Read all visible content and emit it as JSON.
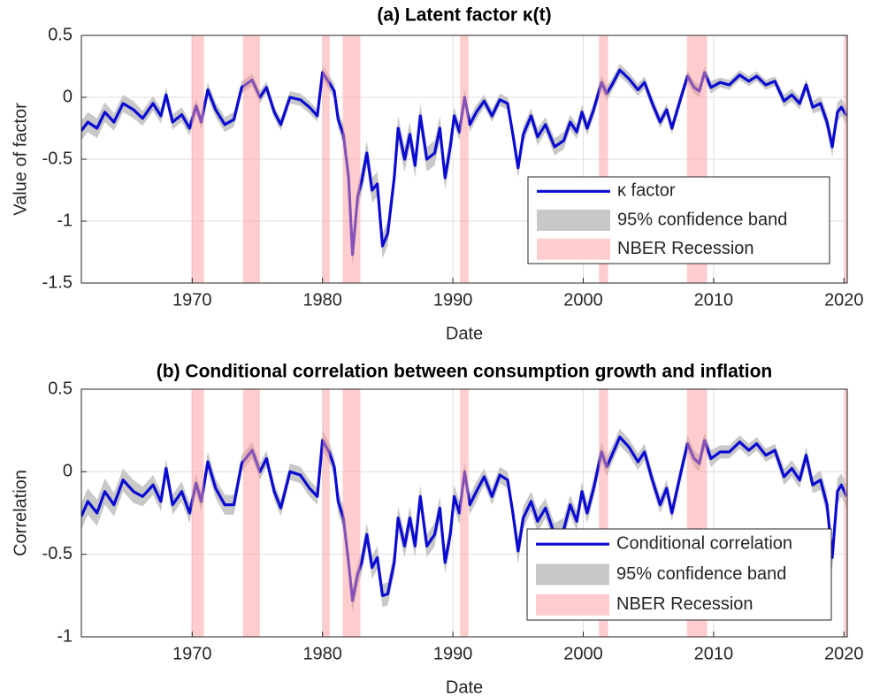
{
  "chart_data": [
    {
      "type": "line",
      "title": "(a) Latent factor κ(t)",
      "xlabel": "Date",
      "ylabel": "Value of factor",
      "xlim": [
        1961.5,
        2020.25
      ],
      "xticks": [
        1970,
        1980,
        1990,
        2000,
        2010,
        2020
      ],
      "ylim": [
        -1.5,
        0.5
      ],
      "yticks": [
        -1.5,
        -1,
        -0.5,
        0,
        0.5
      ],
      "grid": true,
      "legend": "right",
      "x": [
        1961.5,
        1962,
        1962.7,
        1963.3,
        1964,
        1964.7,
        1965.5,
        1966.2,
        1967,
        1967.6,
        1968,
        1968.5,
        1969.2,
        1969.8,
        1970.3,
        1970.7,
        1971.2,
        1971.8,
        1972.5,
        1973.2,
        1973.8,
        1974.6,
        1975.2,
        1975.7,
        1976.3,
        1976.8,
        1977.5,
        1978.3,
        1979,
        1979.6,
        1980,
        1980.5,
        1980.9,
        1981.2,
        1981.6,
        1982,
        1982.3,
        1982.7,
        1983,
        1983.4,
        1983.8,
        1984.2,
        1984.6,
        1985,
        1985.5,
        1985.8,
        1986.3,
        1986.7,
        1987.1,
        1987.5,
        1988,
        1988.6,
        1989,
        1989.4,
        1989.8,
        1990.1,
        1990.5,
        1990.9,
        1991.3,
        1991.8,
        1992.4,
        1993,
        1993.6,
        1994.2,
        1994.6,
        1995,
        1995.4,
        1996,
        1996.5,
        1997.1,
        1997.8,
        1998.5,
        1999,
        1999.5,
        1999.9,
        2000.3,
        2000.8,
        2001.4,
        2001.8,
        2002.2,
        2002.8,
        2003.5,
        2004.2,
        2004.7,
        2005.3,
        2005.9,
        2006.4,
        2006.8,
        2007.5,
        2008,
        2008.5,
        2008.9,
        2009.3,
        2009.8,
        2010.5,
        2011.2,
        2012,
        2012.7,
        2013.3,
        2014,
        2014.7,
        2015.4,
        2016,
        2016.6,
        2017.1,
        2017.6,
        2018.2,
        2018.7,
        2019.1,
        2019.5,
        2019.8,
        2020.2
      ],
      "series": [
        {
          "name": "κ factor",
          "color": "#0a0ad2",
          "values": [
            -0.27,
            -0.2,
            -0.25,
            -0.12,
            -0.2,
            -0.05,
            -0.1,
            -0.17,
            -0.05,
            -0.15,
            0.02,
            -0.2,
            -0.14,
            -0.25,
            -0.07,
            -0.2,
            0.06,
            -0.1,
            -0.22,
            -0.18,
            0.08,
            0.14,
            0,
            0.08,
            -0.12,
            -0.22,
            0,
            -0.02,
            -0.08,
            -0.15,
            0.2,
            0.12,
            0.05,
            -0.18,
            -0.3,
            -0.65,
            -1.27,
            -0.8,
            -0.68,
            -0.45,
            -0.75,
            -0.7,
            -1.2,
            -1.1,
            -0.65,
            -0.25,
            -0.5,
            -0.3,
            -0.55,
            -0.15,
            -0.5,
            -0.45,
            -0.25,
            -0.65,
            -0.4,
            -0.15,
            -0.28,
            0,
            -0.22,
            -0.12,
            -0.03,
            -0.15,
            -0.02,
            -0.05,
            -0.3,
            -0.57,
            -0.3,
            -0.15,
            -0.32,
            -0.22,
            -0.4,
            -0.35,
            -0.2,
            -0.28,
            -0.12,
            -0.25,
            -0.1,
            0.12,
            0.03,
            0.1,
            0.22,
            0.15,
            0.06,
            0.12,
            -0.05,
            -0.2,
            -0.1,
            -0.25,
            0,
            0.17,
            0.08,
            0.05,
            0.2,
            0.08,
            0.12,
            0.1,
            0.18,
            0.13,
            0.17,
            0.1,
            0.13,
            -0.03,
            0.02,
            -0.05,
            0.1,
            -0.08,
            -0.05,
            -0.2,
            -0.4,
            -0.12,
            -0.08,
            -0.15
          ]
        }
      ],
      "band": {
        "name": "95% confidence band",
        "color": "#c8c8c8",
        "lower": [
          -0.35,
          -0.28,
          -0.33,
          -0.2,
          -0.27,
          -0.12,
          -0.17,
          -0.23,
          -0.11,
          -0.21,
          -0.04,
          -0.26,
          -0.2,
          -0.31,
          -0.13,
          -0.26,
          0,
          -0.16,
          -0.28,
          -0.24,
          0.03,
          0.09,
          -0.05,
          0.03,
          -0.17,
          -0.27,
          -0.05,
          -0.07,
          -0.13,
          -0.2,
          0.14,
          0.06,
          -0.01,
          -0.25,
          -0.38,
          -0.75,
          -1.37,
          -0.9,
          -0.78,
          -0.55,
          -0.85,
          -0.8,
          -1.3,
          -1.2,
          -0.75,
          -0.35,
          -0.6,
          -0.4,
          -0.65,
          -0.25,
          -0.6,
          -0.55,
          -0.35,
          -0.75,
          -0.5,
          -0.22,
          -0.35,
          -0.06,
          -0.28,
          -0.18,
          -0.08,
          -0.2,
          -0.07,
          -0.1,
          -0.36,
          -0.65,
          -0.37,
          -0.21,
          -0.39,
          -0.28,
          -0.47,
          -0.42,
          -0.26,
          -0.34,
          -0.18,
          -0.31,
          -0.16,
          0.06,
          -0.03,
          0.05,
          0.17,
          0.1,
          0.01,
          0.07,
          -0.1,
          -0.25,
          -0.15,
          -0.3,
          -0.05,
          0.12,
          0.03,
          0,
          0.15,
          0.03,
          0.08,
          0.06,
          0.14,
          0.09,
          0.13,
          0.06,
          0.09,
          -0.08,
          -0.03,
          -0.1,
          0.05,
          -0.13,
          -0.11,
          -0.27,
          -0.48,
          -0.2,
          -0.15,
          -0.22
        ],
        "upper": [
          -0.19,
          -0.12,
          -0.17,
          -0.04,
          -0.13,
          0.02,
          -0.03,
          -0.11,
          0.01,
          -0.09,
          0.08,
          -0.14,
          -0.08,
          -0.19,
          -0.01,
          -0.14,
          0.12,
          -0.04,
          -0.16,
          -0.12,
          0.13,
          0.19,
          0.05,
          0.13,
          -0.07,
          -0.17,
          0.05,
          0.03,
          -0.03,
          -0.1,
          0.26,
          0.18,
          0.11,
          -0.11,
          -0.22,
          -0.55,
          -1.17,
          -0.7,
          -0.58,
          -0.35,
          -0.65,
          -0.6,
          -1.1,
          -1.0,
          -0.55,
          -0.15,
          -0.4,
          -0.2,
          -0.45,
          -0.05,
          -0.4,
          -0.35,
          -0.15,
          -0.55,
          -0.3,
          -0.08,
          -0.21,
          0.06,
          -0.16,
          -0.06,
          0.02,
          -0.1,
          0.03,
          0,
          -0.24,
          -0.49,
          -0.23,
          -0.09,
          -0.25,
          -0.16,
          -0.33,
          -0.28,
          -0.14,
          -0.22,
          -0.06,
          -0.19,
          -0.04,
          0.18,
          0.09,
          0.15,
          0.27,
          0.2,
          0.11,
          0.17,
          0,
          -0.15,
          -0.05,
          -0.2,
          0.05,
          0.22,
          0.13,
          0.1,
          0.25,
          0.13,
          0.16,
          0.14,
          0.22,
          0.17,
          0.21,
          0.14,
          0.17,
          0.02,
          0.07,
          0,
          0.15,
          -0.03,
          0.01,
          -0.13,
          -0.32,
          -0.04,
          -0.01,
          -0.08
        ]
      },
      "recessions": {
        "name": "NBER Recession",
        "color": "#ff9b9b",
        "spans": [
          [
            1969.95,
            1970.9
          ],
          [
            1973.9,
            1975.2
          ],
          [
            1980.0,
            1980.55
          ],
          [
            1981.55,
            1982.9
          ],
          [
            1990.55,
            1991.2
          ],
          [
            2001.2,
            2001.9
          ],
          [
            2007.95,
            2009.5
          ],
          [
            2020.05,
            2020.25
          ]
        ]
      }
    },
    {
      "type": "line",
      "title": "(b) Conditional correlation between consumption growth and inflation",
      "xlabel": "Date",
      "ylabel": "Correlation",
      "xlim": [
        1961.5,
        2020.25
      ],
      "xticks": [
        1970,
        1980,
        1990,
        2000,
        2010,
        2020
      ],
      "ylim": [
        -1,
        0.5
      ],
      "yticks": [
        -1,
        -0.5,
        0,
        0.5
      ],
      "grid": true,
      "legend": "lower right",
      "x": [
        1961.5,
        1962,
        1962.7,
        1963.3,
        1964,
        1964.7,
        1965.5,
        1966.2,
        1967,
        1967.6,
        1968,
        1968.5,
        1969.2,
        1969.8,
        1970.3,
        1970.7,
        1971.2,
        1971.8,
        1972.5,
        1973.2,
        1973.8,
        1974.6,
        1975.2,
        1975.7,
        1976.3,
        1976.8,
        1977.5,
        1978.3,
        1979,
        1979.6,
        1980,
        1980.5,
        1980.9,
        1981.2,
        1981.6,
        1982,
        1982.3,
        1982.7,
        1983,
        1983.4,
        1983.8,
        1984.2,
        1984.6,
        1985,
        1985.5,
        1985.8,
        1986.3,
        1986.7,
        1987.1,
        1987.5,
        1988,
        1988.6,
        1989,
        1989.4,
        1989.8,
        1990.1,
        1990.5,
        1990.9,
        1991.3,
        1991.8,
        1992.4,
        1993,
        1993.6,
        1994.2,
        1994.6,
        1995,
        1995.4,
        1996,
        1996.5,
        1997.1,
        1997.8,
        1998.5,
        1999,
        1999.5,
        1999.9,
        2000.3,
        2000.8,
        2001.4,
        2001.8,
        2002.2,
        2002.8,
        2003.5,
        2004.2,
        2004.7,
        2005.3,
        2005.9,
        2006.4,
        2006.8,
        2007.5,
        2008,
        2008.5,
        2008.9,
        2009.3,
        2009.8,
        2010.5,
        2011.2,
        2012,
        2012.7,
        2013.3,
        2014,
        2014.7,
        2015.4,
        2016,
        2016.6,
        2017.1,
        2017.6,
        2018.2,
        2018.7,
        2019.1,
        2019.5,
        2019.8,
        2020.2
      ],
      "series": [
        {
          "name": "Conditional correlation",
          "color": "#0a0ad2",
          "values": [
            -0.27,
            -0.18,
            -0.25,
            -0.12,
            -0.2,
            -0.05,
            -0.12,
            -0.15,
            -0.08,
            -0.18,
            0.02,
            -0.2,
            -0.12,
            -0.25,
            -0.07,
            -0.18,
            0.06,
            -0.1,
            -0.2,
            -0.2,
            0.05,
            0.13,
            0,
            0.08,
            -0.12,
            -0.22,
            0,
            -0.02,
            -0.1,
            -0.15,
            0.19,
            0.12,
            0.03,
            -0.18,
            -0.28,
            -0.55,
            -0.78,
            -0.62,
            -0.55,
            -0.38,
            -0.58,
            -0.52,
            -0.75,
            -0.74,
            -0.55,
            -0.28,
            -0.45,
            -0.28,
            -0.45,
            -0.15,
            -0.45,
            -0.38,
            -0.22,
            -0.55,
            -0.38,
            -0.15,
            -0.25,
            0,
            -0.2,
            -0.12,
            -0.03,
            -0.15,
            -0.02,
            -0.05,
            -0.25,
            -0.48,
            -0.28,
            -0.18,
            -0.3,
            -0.22,
            -0.38,
            -0.35,
            -0.2,
            -0.3,
            -0.12,
            -0.25,
            -0.1,
            0.12,
            0.03,
            0.1,
            0.21,
            0.15,
            0.06,
            0.12,
            -0.05,
            -0.2,
            -0.1,
            -0.25,
            0,
            0.17,
            0.08,
            0.05,
            0.19,
            0.08,
            0.12,
            0.12,
            0.18,
            0.13,
            0.17,
            0.1,
            0.13,
            -0.03,
            0.02,
            -0.05,
            0.1,
            -0.08,
            -0.05,
            -0.2,
            -0.52,
            -0.12,
            -0.08,
            -0.15
          ]
        }
      ],
      "band": {
        "name": "95% confidence band",
        "color": "#c8c8c8",
        "lower": [
          -0.35,
          -0.26,
          -0.33,
          -0.2,
          -0.27,
          -0.12,
          -0.19,
          -0.21,
          -0.14,
          -0.24,
          -0.04,
          -0.26,
          -0.18,
          -0.31,
          -0.13,
          -0.24,
          0,
          -0.16,
          -0.26,
          -0.26,
          0,
          0.08,
          -0.05,
          0.03,
          -0.17,
          -0.27,
          -0.05,
          -0.07,
          -0.15,
          -0.2,
          0.13,
          0.06,
          -0.03,
          -0.25,
          -0.35,
          -0.62,
          -0.85,
          -0.69,
          -0.62,
          -0.45,
          -0.65,
          -0.59,
          -0.82,
          -0.81,
          -0.62,
          -0.35,
          -0.52,
          -0.35,
          -0.52,
          -0.22,
          -0.52,
          -0.45,
          -0.29,
          -0.62,
          -0.45,
          -0.22,
          -0.32,
          -0.06,
          -0.26,
          -0.18,
          -0.08,
          -0.2,
          -0.07,
          -0.1,
          -0.31,
          -0.56,
          -0.35,
          -0.24,
          -0.37,
          -0.28,
          -0.45,
          -0.42,
          -0.26,
          -0.36,
          -0.18,
          -0.31,
          -0.16,
          0.06,
          -0.03,
          0.05,
          0.16,
          0.1,
          0.01,
          0.07,
          -0.1,
          -0.25,
          -0.15,
          -0.3,
          -0.05,
          0.12,
          0.03,
          0,
          0.14,
          0.03,
          0.08,
          0.08,
          0.14,
          0.09,
          0.13,
          0.06,
          0.09,
          -0.08,
          -0.03,
          -0.1,
          0.05,
          -0.13,
          -0.11,
          -0.27,
          -0.6,
          -0.2,
          -0.15,
          -0.22
        ],
        "upper": [
          -0.19,
          -0.1,
          -0.17,
          -0.04,
          -0.13,
          0.02,
          -0.05,
          -0.09,
          -0.02,
          -0.12,
          0.08,
          -0.14,
          -0.06,
          -0.19,
          -0.01,
          -0.12,
          0.12,
          -0.04,
          -0.14,
          -0.14,
          0.1,
          0.18,
          0.05,
          0.13,
          -0.07,
          -0.17,
          0.05,
          0.03,
          -0.05,
          -0.1,
          0.25,
          0.18,
          0.09,
          -0.11,
          -0.21,
          -0.48,
          -0.71,
          -0.55,
          -0.48,
          -0.31,
          -0.51,
          -0.45,
          -0.68,
          -0.67,
          -0.48,
          -0.21,
          -0.38,
          -0.21,
          -0.38,
          -0.08,
          -0.38,
          -0.31,
          -0.15,
          -0.48,
          -0.31,
          -0.08,
          -0.18,
          0.06,
          -0.14,
          -0.06,
          0.02,
          -0.1,
          0.03,
          0,
          -0.19,
          -0.4,
          -0.21,
          -0.12,
          -0.23,
          -0.16,
          -0.31,
          -0.28,
          -0.14,
          -0.24,
          -0.06,
          -0.19,
          -0.04,
          0.18,
          0.09,
          0.15,
          0.26,
          0.2,
          0.11,
          0.17,
          0,
          -0.15,
          -0.05,
          -0.2,
          0.05,
          0.22,
          0.13,
          0.1,
          0.24,
          0.13,
          0.16,
          0.16,
          0.22,
          0.17,
          0.21,
          0.14,
          0.17,
          0.02,
          0.07,
          0,
          0.15,
          -0.03,
          0.01,
          -0.13,
          -0.44,
          -0.04,
          -0.01,
          -0.08
        ]
      },
      "recessions": {
        "name": "NBER Recession",
        "color": "#ff9b9b",
        "spans": [
          [
            1969.95,
            1970.9
          ],
          [
            1973.9,
            1975.2
          ],
          [
            1980.0,
            1980.55
          ],
          [
            1981.55,
            1982.9
          ],
          [
            1990.55,
            1991.2
          ],
          [
            2001.2,
            2001.9
          ],
          [
            2007.95,
            2009.5
          ],
          [
            2020.05,
            2020.25
          ]
        ]
      }
    }
  ]
}
